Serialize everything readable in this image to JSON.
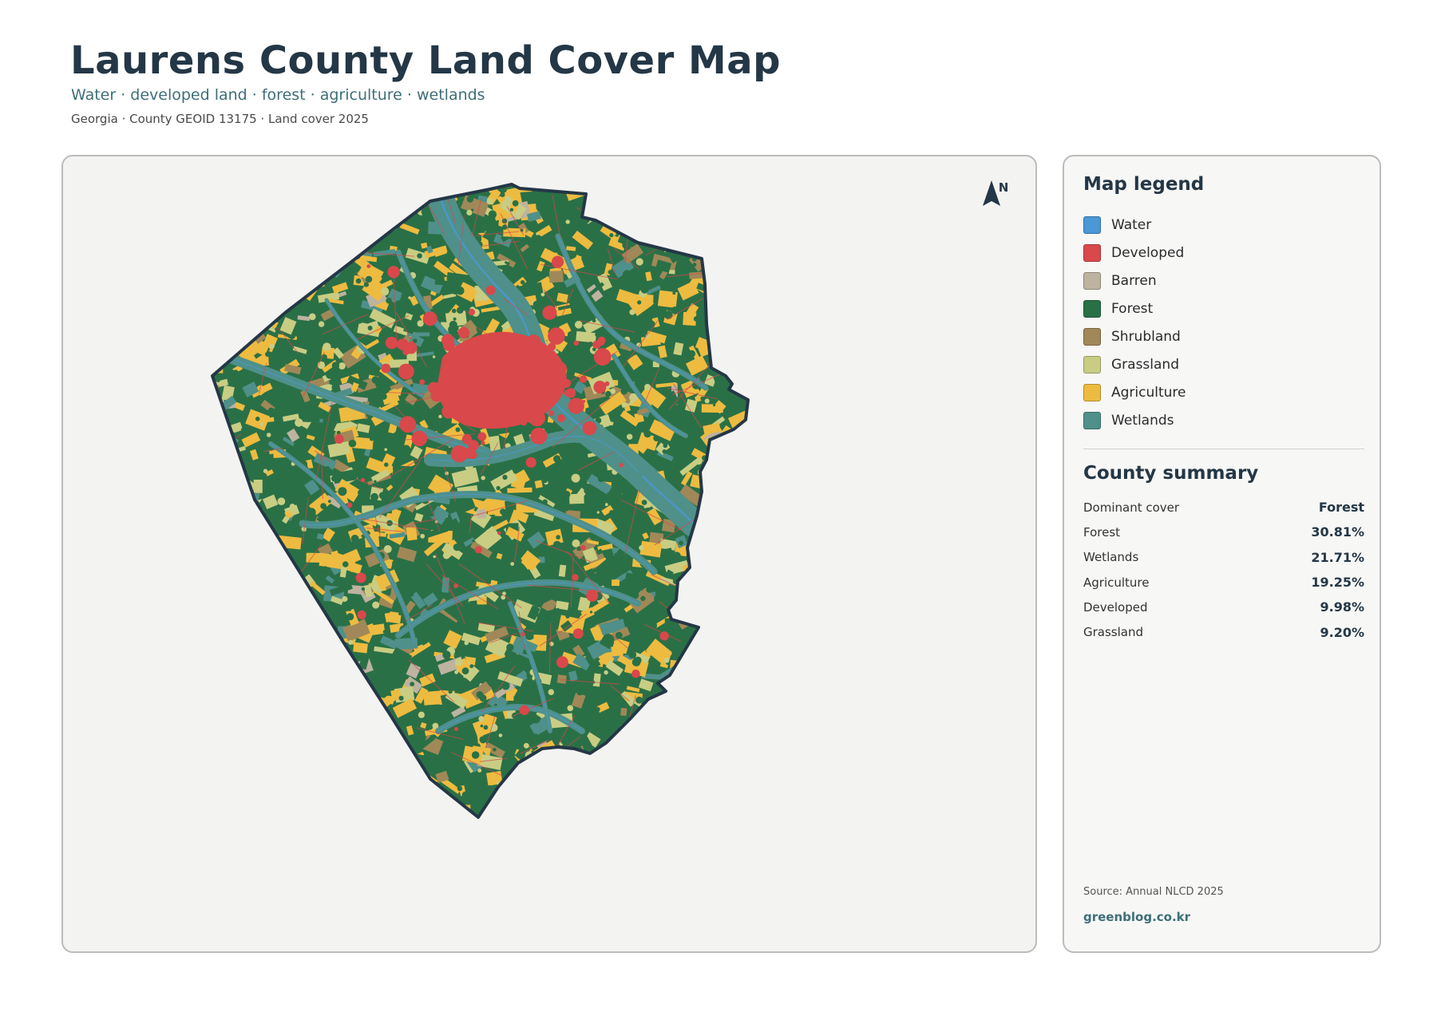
{
  "header": {
    "title": "Laurens County Land Cover Map",
    "subtitle": "Water · developed land · forest · agriculture · wetlands",
    "meta": "Georgia · County GEOID 13175 · Land cover 2025"
  },
  "map": {
    "north_label": "N",
    "colors": {
      "water": "#4a98d6",
      "developed": "#d9484a",
      "barren": "#bdb3a0",
      "forest": "#2a7046",
      "shrubland": "#a08858",
      "grassland": "#c8cd83",
      "agriculture": "#edbb40",
      "wetlands": "#4f908a",
      "boundary": "#243746",
      "background": "#f3f3f2"
    }
  },
  "legend": {
    "title": "Map legend",
    "items": [
      {
        "label": "Water",
        "color": "#4a98d6"
      },
      {
        "label": "Developed",
        "color": "#d9484a"
      },
      {
        "label": "Barren",
        "color": "#bdb3a0"
      },
      {
        "label": "Forest",
        "color": "#2a7046"
      },
      {
        "label": "Shrubland",
        "color": "#a08858"
      },
      {
        "label": "Grassland",
        "color": "#c8cd83"
      },
      {
        "label": "Agriculture",
        "color": "#edbb40"
      },
      {
        "label": "Wetlands",
        "color": "#4f908a"
      }
    ]
  },
  "summary": {
    "title": "County summary",
    "rows": [
      {
        "label": "Dominant cover",
        "value": "Forest"
      },
      {
        "label": "Forest",
        "value": "30.81%"
      },
      {
        "label": "Wetlands",
        "value": "21.71%"
      },
      {
        "label": "Agriculture",
        "value": "19.25%"
      },
      {
        "label": "Developed",
        "value": "9.98%"
      },
      {
        "label": "Grassland",
        "value": "9.20%"
      }
    ]
  },
  "footer": {
    "source": "Source: Annual NLCD 2025",
    "site": "greenblog.co.kr"
  }
}
